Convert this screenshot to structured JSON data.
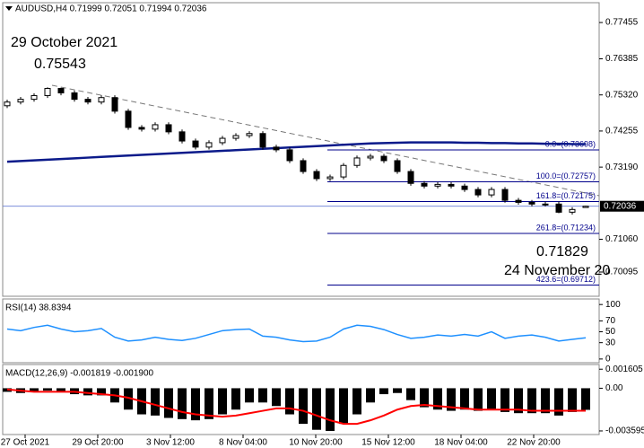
{
  "window": {
    "header": "AUDUSD,H4  0.71999 0.72051 0.71994 0.72036"
  },
  "chart_data": [
    {
      "type": "candlestick",
      "open": [
        0.75,
        0.7511,
        0.7519,
        0.753,
        0.7551,
        0.7538,
        0.7519,
        0.7511,
        0.7524,
        0.7484,
        0.7436,
        0.7431,
        0.7444,
        0.7423,
        0.7396,
        0.7378,
        0.7391,
        0.7404,
        0.7412,
        0.7418,
        0.7378,
        0.737,
        0.7338,
        0.7306,
        0.7285,
        0.729,
        0.7324,
        0.7346,
        0.7351,
        0.7338,
        0.7306,
        0.7271,
        0.7263,
        0.7268,
        0.7263,
        0.7253,
        0.7237,
        0.7253,
        0.7221,
        0.7215,
        0.721,
        0.721,
        0.7186,
        0.71999
      ],
      "high": [
        0.7518,
        0.7526,
        0.7537,
        0.75543,
        0.7553,
        0.7545,
        0.7526,
        0.7531,
        0.7531,
        0.7491,
        0.7443,
        0.7451,
        0.7451,
        0.743,
        0.7403,
        0.7398,
        0.7411,
        0.7419,
        0.7425,
        0.7425,
        0.7385,
        0.7377,
        0.7345,
        0.7313,
        0.7297,
        0.7331,
        0.7353,
        0.7358,
        0.7358,
        0.7345,
        0.7313,
        0.7278,
        0.7275,
        0.7275,
        0.727,
        0.726,
        0.726,
        0.726,
        0.7228,
        0.7222,
        0.7217,
        0.7217,
        0.7201,
        0.72051
      ],
      "low": [
        0.7493,
        0.7504,
        0.7512,
        0.7523,
        0.7531,
        0.7512,
        0.7504,
        0.7504,
        0.7477,
        0.7429,
        0.7424,
        0.7424,
        0.7416,
        0.7389,
        0.7371,
        0.7371,
        0.7384,
        0.7397,
        0.7405,
        0.7371,
        0.7363,
        0.7331,
        0.7299,
        0.7278,
        0.7278,
        0.7283,
        0.7317,
        0.7339,
        0.7331,
        0.7299,
        0.7264,
        0.7256,
        0.7256,
        0.7256,
        0.7246,
        0.723,
        0.723,
        0.7214,
        0.7208,
        0.7203,
        0.7203,
        0.71829,
        0.7179,
        0.71994
      ],
      "close": [
        0.7511,
        0.7519,
        0.753,
        0.7551,
        0.7538,
        0.7519,
        0.7511,
        0.7524,
        0.7484,
        0.7436,
        0.7431,
        0.7444,
        0.7423,
        0.7396,
        0.7378,
        0.7391,
        0.7404,
        0.7412,
        0.7418,
        0.7378,
        0.737,
        0.7338,
        0.7306,
        0.7285,
        0.729,
        0.7324,
        0.7346,
        0.7351,
        0.7338,
        0.7306,
        0.7271,
        0.7263,
        0.7268,
        0.7263,
        0.7253,
        0.7237,
        0.7253,
        0.7221,
        0.7215,
        0.721,
        0.721,
        0.7186,
        0.7194,
        0.72036
      ],
      "ma": {
        "color": "#0b1a8a",
        "values": [
          0.7335,
          0.7337,
          0.7339,
          0.7341,
          0.7343,
          0.7345,
          0.7347,
          0.7349,
          0.7351,
          0.7353,
          0.7355,
          0.7357,
          0.7359,
          0.7361,
          0.7363,
          0.7365,
          0.7367,
          0.7369,
          0.7371,
          0.7373,
          0.7375,
          0.7377,
          0.7379,
          0.7381,
          0.7383,
          0.7385,
          0.7387,
          0.7389,
          0.739,
          0.7391,
          0.7392,
          0.7392,
          0.7392,
          0.7392,
          0.7391,
          0.7391,
          0.739,
          0.739,
          0.7389,
          0.7389,
          0.7388,
          0.7388,
          0.7387,
          0.7387
        ]
      },
      "ylim": [
        0.6938,
        0.7804
      ],
      "yticks": [
        0.77455,
        0.76385,
        {
          "value": 0.7532,
          "label": "0.75320"
        },
        0.74255,
        {
          "value": 0.7319,
          "label": "0.73190"
        },
        {
          "value": 0.7106,
          "label": "0.71060"
        },
        0.70095
      ],
      "price_line": 0.72036,
      "fib_levels": [
        {
          "label": "0.0=(0.73698)",
          "value": 0.73698
        },
        {
          "label": "100.0=(0.72757)",
          "value": 0.72757
        },
        {
          "label": "161.8=(0.72175)",
          "value": 0.72175
        },
        {
          "label": "261.8=(0.71234)",
          "value": 0.71234
        },
        {
          "label": "423.6=(0.69712)",
          "value": 0.69712
        }
      ],
      "annotations": {
        "high_date": "29 October 2021",
        "high_price": 0.75543,
        "low_price": 0.71829,
        "low_date": "24 November 20"
      },
      "x_labels": [
        "27 Oct 2021",
        "29 Oct 20:00",
        "3 Nov 12:00",
        "8 Nov 04:00",
        "10 Nov 20:00",
        "15 Nov 12:00",
        "18 Nov 04:00",
        "22 Nov 20:00"
      ]
    },
    {
      "type": "line",
      "title": "RSI(14) 38.8394",
      "color": "#1e90ff",
      "values": [
        55,
        52,
        58,
        62,
        55,
        50,
        52,
        56,
        40,
        33,
        35,
        40,
        36,
        34,
        38,
        45,
        52,
        54,
        55,
        42,
        40,
        35,
        32,
        33,
        40,
        55,
        62,
        60,
        54,
        45,
        38,
        40,
        44,
        42,
        45,
        42,
        50,
        38,
        42,
        44,
        40,
        33,
        36,
        38.8394
      ],
      "ylim": [
        -6.8,
        110.2
      ],
      "yticks": [
        0,
        30,
        50,
        70,
        100
      ]
    },
    {
      "type": "macd",
      "title": "MACD(12,26,9) -0.001819 -0.001900",
      "histogram": [
        -0.0003,
        -0.0004,
        -0.0003,
        -0.0002,
        -0.0003,
        -0.0005,
        -0.0006,
        -0.0006,
        -0.0012,
        -0.0018,
        -0.0022,
        -0.0023,
        -0.0025,
        -0.0026,
        -0.0027,
        -0.0026,
        -0.0022,
        -0.0018,
        -0.0012,
        -0.0012,
        -0.0015,
        -0.0022,
        -0.003,
        -0.0035,
        -0.0036,
        -0.003,
        -0.0022,
        -0.0012,
        -0.0005,
        -0.0004,
        -0.001,
        -0.0016,
        -0.0018,
        -0.0019,
        -0.0018,
        -0.0019,
        -0.0018,
        -0.002,
        -0.0021,
        -0.0021,
        -0.0021,
        -0.0023,
        -0.002,
        -0.001819
      ],
      "signal": {
        "color": "#ff0000",
        "values": [
          -0.0001,
          -0.0002,
          -0.0003,
          -0.0003,
          -0.0003,
          -0.0003,
          -0.0004,
          -0.0005,
          -0.0006,
          -0.0008,
          -0.0011,
          -0.0014,
          -0.0017,
          -0.002,
          -0.0022,
          -0.0023,
          -0.0024,
          -0.0023,
          -0.0021,
          -0.0019,
          -0.0017,
          -0.0017,
          -0.0019,
          -0.0023,
          -0.0027,
          -0.003,
          -0.003,
          -0.0027,
          -0.0023,
          -0.0018,
          -0.0015,
          -0.0014,
          -0.0015,
          -0.0016,
          -0.0017,
          -0.0018,
          -0.0018,
          -0.0018,
          -0.0018,
          -0.0019,
          -0.0019,
          -0.0019,
          -0.0019,
          -0.0019
        ]
      },
      "ylim": [
        -0.0039,
        0.002
      ],
      "yticks": [
        0.001605,
        {
          "value": 0,
          "label": "0.00"
        },
        -0.003595
      ]
    }
  ]
}
